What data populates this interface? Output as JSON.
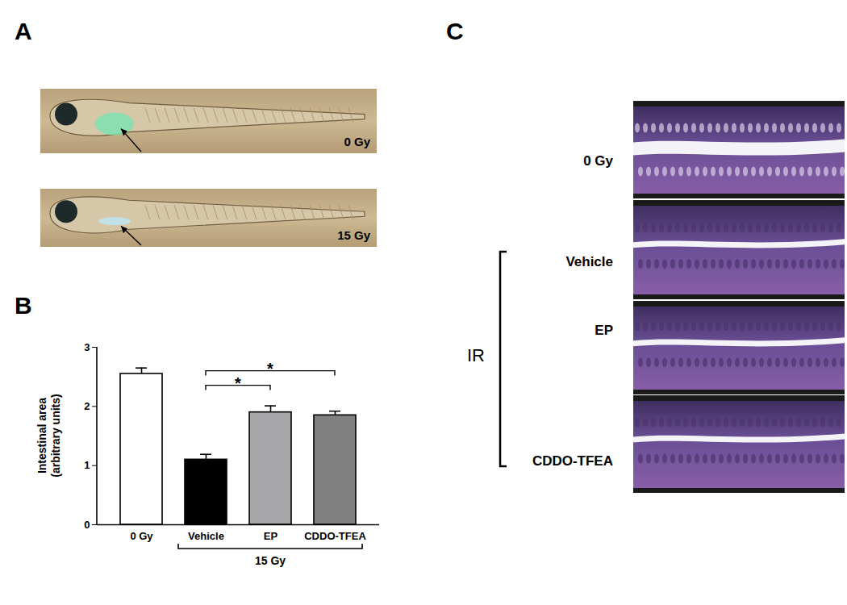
{
  "panels": {
    "A": {
      "letter": "A",
      "images": [
        {
          "label": "0 Gy"
        },
        {
          "label": "15 Gy"
        }
      ]
    },
    "C": {
      "letter": "C",
      "group_label": "IR",
      "images": [
        {
          "label": "0 Gy"
        },
        {
          "label": "Vehicle"
        },
        {
          "label": "EP"
        },
        {
          "label": "CDDO-TFEA"
        }
      ]
    }
  },
  "chart_data": {
    "type": "bar",
    "title": "B",
    "categories": [
      "0 Gy",
      "Vehicle",
      "EP",
      "CDDO-TFEA"
    ],
    "values": [
      2.55,
      1.1,
      1.9,
      1.85
    ],
    "errors": [
      0.1,
      0.09,
      0.11,
      0.07
    ],
    "colors": [
      "#ffffff",
      "#000000",
      "#a7a7aa",
      "#808080"
    ],
    "ylabel": "Intestinal area\n(arbitrary units)",
    "ylim": [
      0,
      3
    ],
    "yticks": [
      0,
      1,
      2,
      3
    ],
    "group": {
      "label": "15 Gy",
      "categories": [
        "Vehicle",
        "EP",
        "CDDO-TFEA"
      ]
    },
    "significance": [
      {
        "from": "Vehicle",
        "to": "EP",
        "label": "*"
      },
      {
        "from": "Vehicle",
        "to": "CDDO-TFEA",
        "label": "*"
      }
    ]
  }
}
